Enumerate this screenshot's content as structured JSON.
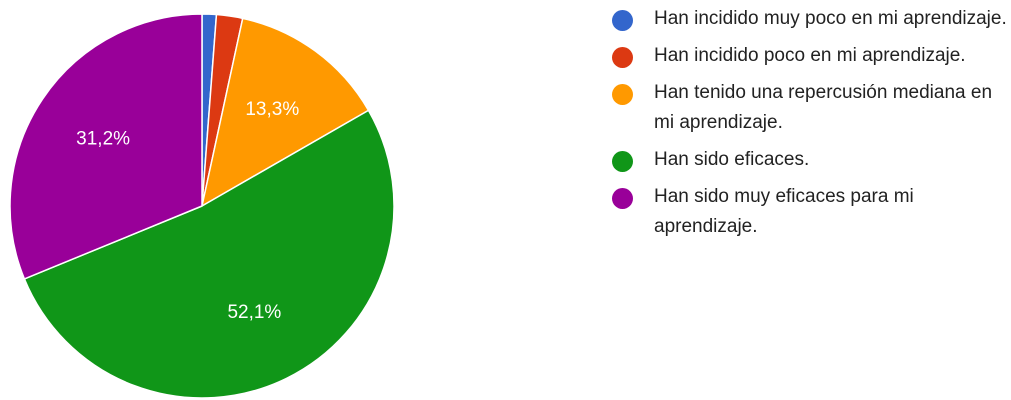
{
  "chart_data": {
    "type": "pie",
    "title": "",
    "legend_position": "right",
    "start_angle_deg": 90,
    "direction": "clockwise",
    "slices": [
      {
        "label": "Han incidido muy poco en mi aprendizaje.",
        "value": 1.2,
        "color": "#3366cc",
        "display_label": ""
      },
      {
        "label": "Han incidido poco en mi aprendizaje.",
        "value": 2.2,
        "color": "#dc3912",
        "display_label": ""
      },
      {
        "label": "Han tenido una repercusión mediana en mi aprendizaje.",
        "value": 13.3,
        "color": "#ff9900",
        "display_label": "13,3%"
      },
      {
        "label": "Han sido eficaces.",
        "value": 52.1,
        "color": "#109618",
        "display_label": "52,1%"
      },
      {
        "label": "Han sido muy eficaces para mi aprendizaje.",
        "value": 31.2,
        "color": "#990099",
        "display_label": "31,2%"
      }
    ]
  },
  "legend": {
    "items": [
      {
        "label": "Han incidido muy poco en mi aprendizaje.",
        "color": "#3366cc"
      },
      {
        "label": "Han incidido poco en mi aprendizaje.",
        "color": "#dc3912"
      },
      {
        "label": "Han tenido una repercusión mediana en mi aprendizaje.",
        "color": "#ff9900"
      },
      {
        "label": "Han sido eficaces.",
        "color": "#109618"
      },
      {
        "label": "Han sido muy eficaces para mi aprendizaje.",
        "color": "#990099"
      }
    ]
  }
}
